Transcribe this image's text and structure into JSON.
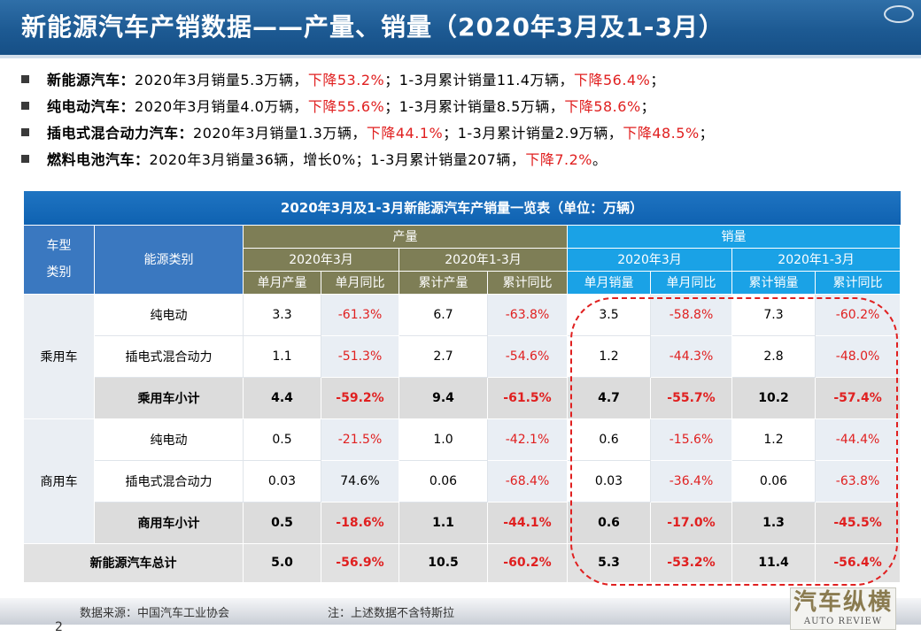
{
  "header": {
    "title": "新能源汽车产销数据——产量、销量（2020年3月及1-3月）"
  },
  "bullets": [
    {
      "label": "新能源汽车：",
      "text1": "2020年3月销量5.3万辆，",
      "red1": "下降53.2%",
      "text2": "；1-3月累计销量11.4万辆，",
      "red2": "下降56.4%",
      "end": "；"
    },
    {
      "label": "纯电动汽车：",
      "text1": "2020年3月销量4.0万辆，",
      "red1": "下降55.6%",
      "text2": "；1-3月累计销量8.5万辆，",
      "red2": "下降58.6%",
      "end": "；"
    },
    {
      "label": "插电式混合动力汽车：",
      "text1": "2020年3月销量1.3万辆，",
      "red1": "下降44.1%",
      "text2": "；1-3月累计销量2.9万辆，",
      "red2": "下降48.5%",
      "end": "；"
    },
    {
      "label": "燃料电池汽车：",
      "text1": "2020年3月销量36辆，增长0%；1-3月累计销量207辆，",
      "red1": "下降7.2%",
      "text2": "",
      "red2": "",
      "end": "。"
    }
  ],
  "table": {
    "title": "2020年3月及1-3月新能源汽车产销量一览表（单位：万辆）",
    "col_type_line1": "车型",
    "col_type_line2": "类别",
    "col_energy": "能源类别",
    "group_production": "产量",
    "group_sales": "销量",
    "period_month": "2020年3月",
    "period_cum": "2020年1-3月",
    "sub_headers": [
      "单月产量",
      "单月同比",
      "累计产量",
      "累计同比",
      "单月销量",
      "单月同比",
      "累计销量",
      "累计同比"
    ],
    "categories": {
      "passenger": "乘用车",
      "commercial": "商用车"
    },
    "rows": [
      {
        "energy": "纯电动",
        "values": [
          "3.3",
          "-61.3%",
          "6.7",
          "-63.8%",
          "3.5",
          "-58.8%",
          "7.3",
          "-60.2%"
        ]
      },
      {
        "energy": "插电式混合动力",
        "values": [
          "1.1",
          "-51.3%",
          "2.7",
          "-54.6%",
          "1.2",
          "-44.3%",
          "2.8",
          "-48.0%"
        ]
      },
      {
        "energy": "乘用车小计",
        "values": [
          "4.4",
          "-59.2%",
          "9.4",
          "-61.5%",
          "4.7",
          "-55.7%",
          "10.2",
          "-57.4%"
        ]
      },
      {
        "energy": "纯电动",
        "values": [
          "0.5",
          "-21.5%",
          "1.0",
          "-42.1%",
          "0.6",
          "-15.6%",
          "1.2",
          "-44.4%"
        ]
      },
      {
        "energy": "插电式混合动力",
        "values": [
          "0.03",
          "74.6%",
          "0.06",
          "-68.4%",
          "0.03",
          "-36.4%",
          "0.06",
          "-63.8%"
        ]
      },
      {
        "energy": "商用车小计",
        "values": [
          "0.5",
          "-18.6%",
          "1.1",
          "-44.1%",
          "0.6",
          "-17.0%",
          "1.3",
          "-45.5%"
        ]
      }
    ],
    "total": {
      "label": "新能源汽车总计",
      "values": [
        "5.0",
        "-56.9%",
        "10.5",
        "-60.2%",
        "5.3",
        "-53.2%",
        "11.4",
        "-56.4%"
      ]
    }
  },
  "footer": {
    "source": "数据来源：中国汽车工业协会",
    "note": "注：上述数据不含特斯拉",
    "page": "2",
    "brand_cn": "汽车纵横",
    "brand_en": "AUTO REVIEW"
  },
  "colors": {
    "title_bar": "#1d5a93",
    "header_blue": "#3a78c0",
    "header_olive": "#7e7e56",
    "header_cyan": "#1aa2e6",
    "negative_red": "#e02020"
  }
}
